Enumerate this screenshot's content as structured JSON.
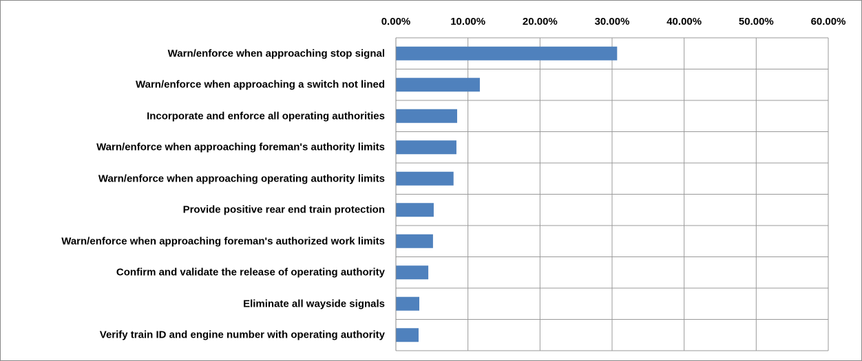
{
  "chart_data": {
    "type": "barh",
    "categories": [
      "Warn/enforce when approaching stop signal",
      "Warn/enforce when approaching a switch not lined",
      "Incorporate and enforce all operating authorities",
      "Warn/enforce when approaching foreman's authority limits",
      "Warn/enforce when approaching operating authority limits",
      "Provide positive rear end train protection",
      "Warn/enforce when approaching foreman's authorized work limits",
      "Confirm and validate the release of operating authority",
      "Eliminate all wayside signals",
      "Verify train ID and engine number with operating authority"
    ],
    "values": [
      30.7,
      11.65,
      8.5,
      8.4,
      8.0,
      5.25,
      5.15,
      4.5,
      3.25,
      3.15
    ],
    "color": "#4f81bd",
    "xlim": [
      0,
      60
    ],
    "xticks": [
      {
        "value": 0,
        "label": "0.00%"
      },
      {
        "value": 10,
        "label": "10.00%"
      },
      {
        "value": 20,
        "label": "20.00%"
      },
      {
        "value": 30,
        "label": "30.00%"
      },
      {
        "value": 40,
        "label": "40.00%"
      },
      {
        "value": 50,
        "label": "50.00%"
      },
      {
        "value": 60,
        "label": "60.00%"
      }
    ],
    "grid": true
  }
}
